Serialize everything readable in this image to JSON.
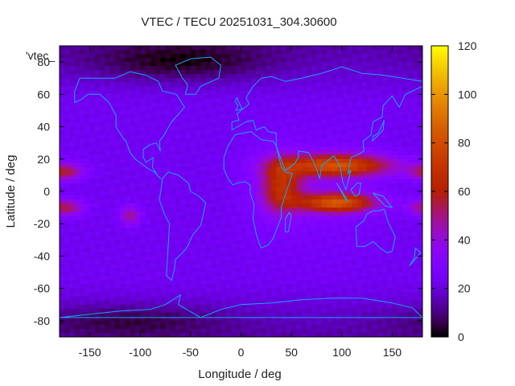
{
  "chart_data": {
    "type": "heatmap",
    "title": "VTEC / TECU 20251031_304.30600",
    "xlabel": "Longitude / deg",
    "ylabel": "Latitude / deg",
    "legend_key": "'vtec_",
    "xlim": [
      -180,
      180
    ],
    "ylim": [
      -90,
      90
    ],
    "x_ticks": [
      -150,
      -100,
      -50,
      0,
      50,
      100,
      150
    ],
    "y_ticks": [
      -80,
      -60,
      -40,
      -20,
      0,
      20,
      40,
      60,
      80
    ],
    "colorbar": {
      "min": 0,
      "max": 120,
      "ticks": [
        0,
        20,
        40,
        60,
        80,
        100,
        120
      ],
      "colormap": "gnuplot-black-blue-purple-red-orange-yellow"
    },
    "grid_resolution": {
      "lon_step": 5,
      "lat_step": 2.5
    },
    "vtec_field_components": [
      {
        "feature": "background",
        "lon": null,
        "lat": null,
        "value": 24
      },
      {
        "feature": "equatorial-crest-north",
        "lon": 95,
        "lat": 16,
        "value": 78
      },
      {
        "feature": "equatorial-crest-south",
        "lon": 95,
        "lat": -7,
        "value": 80
      },
      {
        "feature": "afternoon-anomaly-africa",
        "lon": 40,
        "lat": 3,
        "value": 63
      },
      {
        "feature": "pacific-crest-north",
        "lon": -175,
        "lat": 12,
        "value": 55
      },
      {
        "feature": "pacific-crest-south",
        "lon": -175,
        "lat": -10,
        "value": 55
      },
      {
        "feature": "east-pacific-patch",
        "lon": -110,
        "lat": -15,
        "value": 48
      },
      {
        "feature": "arctic-low",
        "lon": -60,
        "lat": 80,
        "value": 8
      },
      {
        "feature": "antarctic-low",
        "lon": -110,
        "lat": -80,
        "value": 12
      }
    ],
    "map_overlay": "coastlines",
    "coastline_color": "#1aa3ff"
  }
}
